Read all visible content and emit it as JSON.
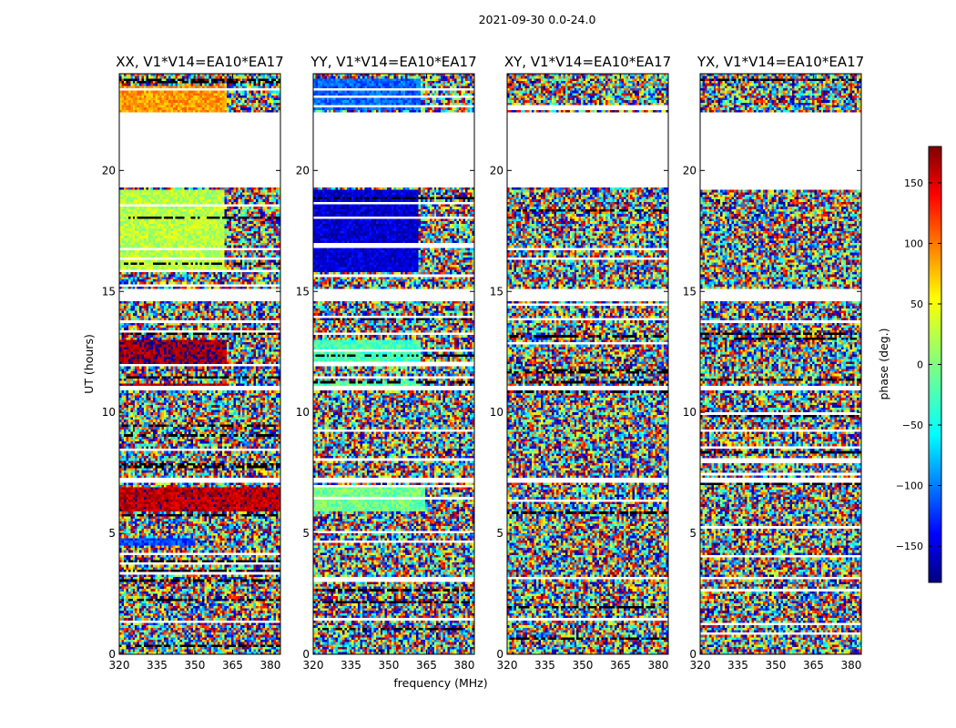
{
  "figure": {
    "suptitle": "2021-09-30 0.0-24.0",
    "xlabel": "frequency (MHz)",
    "ylabel": "UT (hours)"
  },
  "chart_data": {
    "type": "heatmap",
    "x": {
      "label": "frequency (MHz)",
      "range": [
        320,
        384
      ],
      "ticks": [
        320,
        335,
        350,
        365,
        380
      ],
      "unit": "MHz"
    },
    "y": {
      "label": "UT (hours)",
      "range": [
        0,
        24
      ],
      "ticks": [
        0,
        5,
        10,
        15,
        20
      ],
      "unit": "hours"
    },
    "colorbar": {
      "label": "phase (deg.)",
      "range": [
        -180,
        180
      ],
      "ticks": [
        150,
        100,
        50,
        0,
        -50,
        -100,
        -150
      ],
      "tick_labels": [
        "150",
        "100",
        "50",
        "0",
        "−50",
        "−100",
        "−150"
      ],
      "colormap": "jet",
      "colors": [
        "#00007f",
        "#0000ff",
        "#0080ff",
        "#00ffff",
        "#80ff80",
        "#ffff00",
        "#ff8000",
        "#ff0000",
        "#7f0000"
      ]
    },
    "panels": [
      {
        "title": "XX, V1*V14=EA10*EA17",
        "coherent_bands": [
          {
            "ut": [
              22.4,
              23.5
            ],
            "low_freq_phase": 80,
            "freq_coherent_until": 363
          },
          {
            "ut": [
              15.8,
              19.2
            ],
            "low_freq_phase": 20,
            "freq_coherent_until": 362
          },
          {
            "ut": [
              12.0,
              13.0
            ],
            "low_freq_phase": 170,
            "freq_coherent_until": 363
          },
          {
            "ut": [
              10.85,
              11.2
            ],
            "low_freq_phase": 165,
            "freq_coherent_until": 363
          },
          {
            "ut": [
              5.9,
              6.9
            ],
            "low_freq_phase": 160,
            "freq_coherent_until": 384
          },
          {
            "ut": [
              4.55,
              4.75
            ],
            "low_freq_phase": -110,
            "freq_coherent_until": 350
          }
        ]
      },
      {
        "title": "YY, V1*V14=EA10*EA17",
        "coherent_bands": [
          {
            "ut": [
              22.5,
              23.8
            ],
            "low_freq_phase": -100,
            "freq_coherent_until": 363
          },
          {
            "ut": [
              15.8,
              19.2
            ],
            "low_freq_phase": -150,
            "freq_coherent_until": 362
          },
          {
            "ut": [
              12.0,
              13.0
            ],
            "low_freq_phase": -20,
            "freq_coherent_until": 363
          },
          {
            "ut": [
              10.85,
              11.3
            ],
            "low_freq_phase": -15,
            "freq_coherent_until": 363
          },
          {
            "ut": [
              5.9,
              6.9
            ],
            "low_freq_phase": -5,
            "freq_coherent_until": 364
          }
        ]
      },
      {
        "title": "XY, V1*V14=EA10*EA17",
        "coherent_bands": []
      },
      {
        "title": "YX, V1*V14=EA10*EA17",
        "coherent_bands": []
      }
    ],
    "data_gaps_ut": [
      [
        19.3,
        22.4
      ],
      [
        14.65,
        15.05
      ],
      [
        7.15,
        7.35
      ],
      [
        10.95,
        11.1
      ]
    ]
  }
}
